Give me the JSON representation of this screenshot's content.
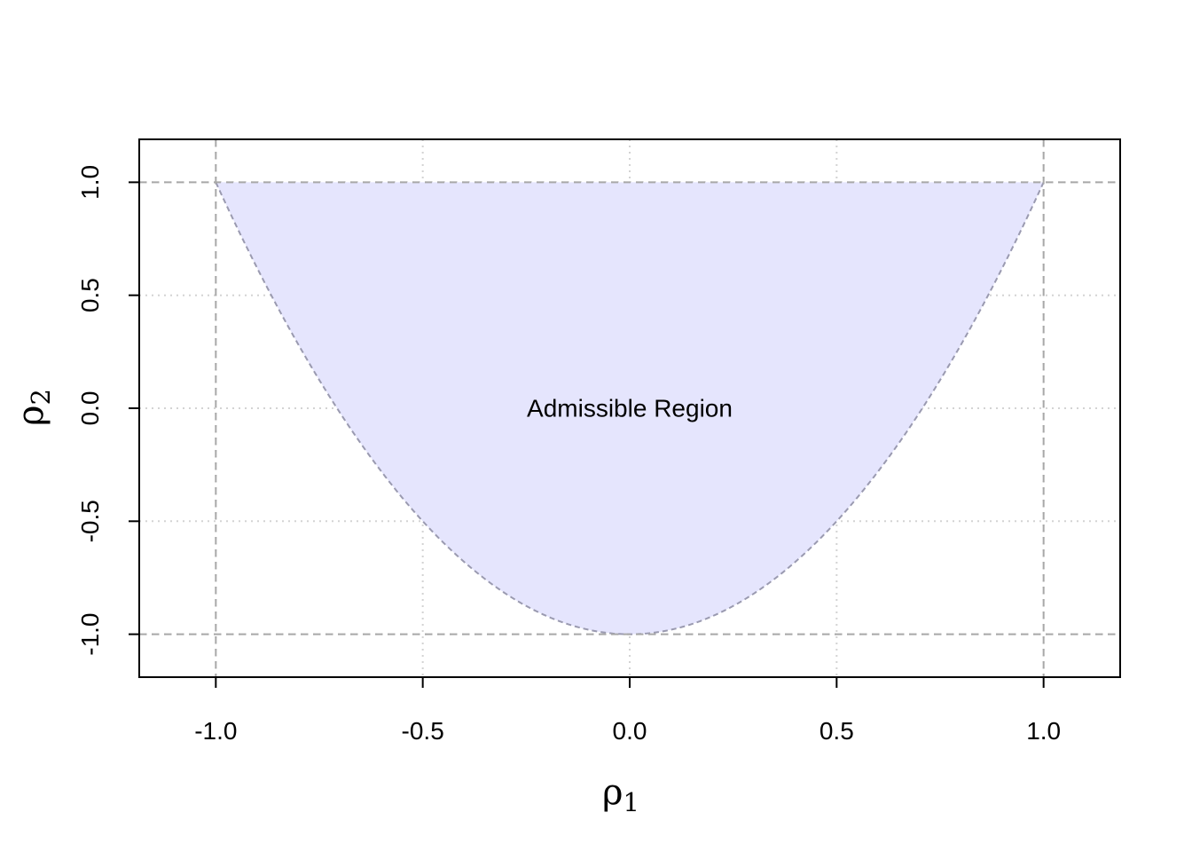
{
  "chart_data": {
    "type": "area",
    "title": "",
    "xlabel": {
      "symbol": "ρ",
      "sub": "1"
    },
    "ylabel": {
      "symbol": "ρ",
      "sub": "2"
    },
    "xlim": [
      -1.185,
      1.185
    ],
    "ylim": [
      -1.19,
      1.19
    ],
    "xticks": [
      -1.0,
      -0.5,
      0.0,
      0.5,
      1.0
    ],
    "xtick_labels": [
      "-1.0",
      "-0.5",
      "0.0",
      "0.5",
      "1.0"
    ],
    "yticks": [
      -1.0,
      -0.5,
      0.0,
      0.5,
      1.0
    ],
    "ytick_labels": [
      "-1.0",
      "-0.5",
      "0.0",
      "0.5",
      "1.0"
    ],
    "grid": true,
    "region": {
      "label": "Admissible Region",
      "label_at": [
        0.0,
        0.0
      ],
      "lower_boundary": "rho2 = 2*rho1^2 - 1",
      "upper_boundary": 1.0,
      "x_range": [
        -1.0,
        1.0
      ],
      "fill_color": "#e5e5fd",
      "boundary_color": "#9a9ab0"
    },
    "reference_lines": {
      "vertical": [
        -1.0,
        1.0
      ],
      "horizontal": [
        -1.0,
        1.0
      ],
      "color": "#a8a8a8"
    }
  }
}
